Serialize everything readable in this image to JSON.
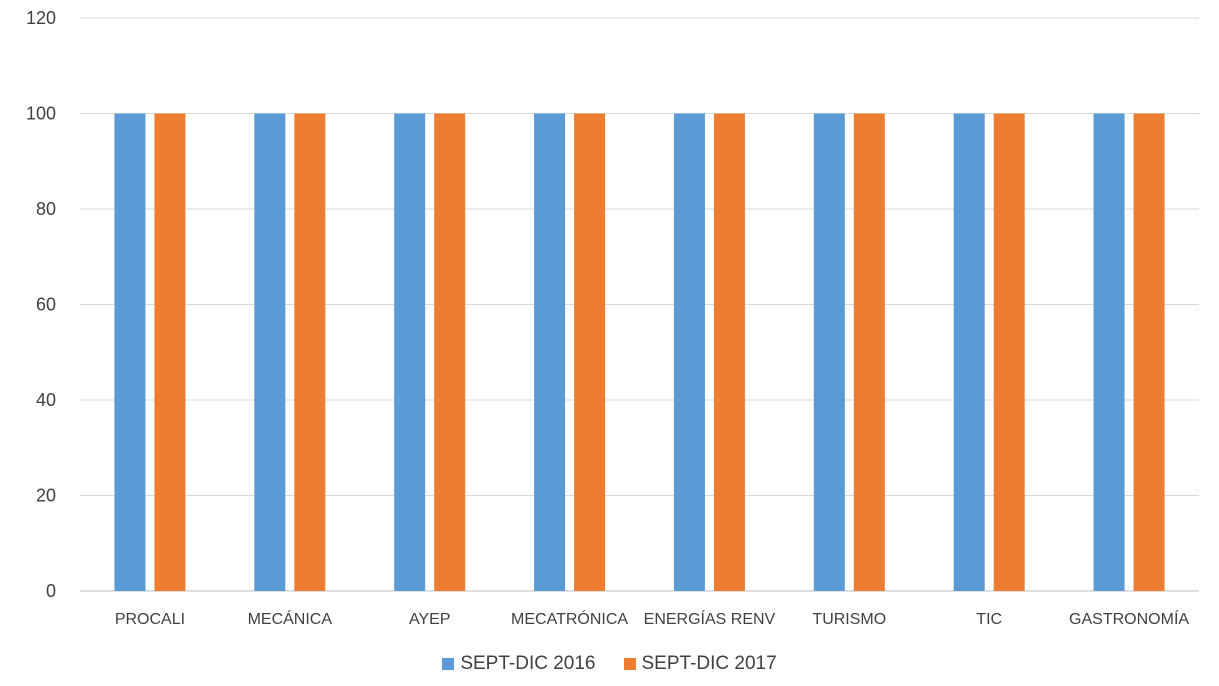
{
  "chart_data": {
    "type": "bar",
    "categories": [
      "PROCALI",
      "MECÁNICA",
      "AYEP",
      "MECATRÓNICA",
      "ENERGÍAS RENV",
      "TURISMO",
      "TIC",
      "GASTRONOMÍA"
    ],
    "series": [
      {
        "name": "SEPT-DIC 2016",
        "color": "#5B9BD5",
        "values": [
          100,
          100,
          100,
          100,
          100,
          100,
          100,
          100
        ]
      },
      {
        "name": "SEPT-DIC 2017",
        "color": "#ED7D31",
        "values": [
          100,
          100,
          100,
          100,
          100,
          100,
          100,
          100
        ]
      }
    ],
    "title": "",
    "xlabel": "",
    "ylabel": "",
    "ylim": [
      0,
      120
    ],
    "yticks": [
      "0",
      "20",
      "40",
      "60",
      "80",
      "100",
      "120"
    ],
    "grid": true,
    "legend_position": "bottom"
  }
}
